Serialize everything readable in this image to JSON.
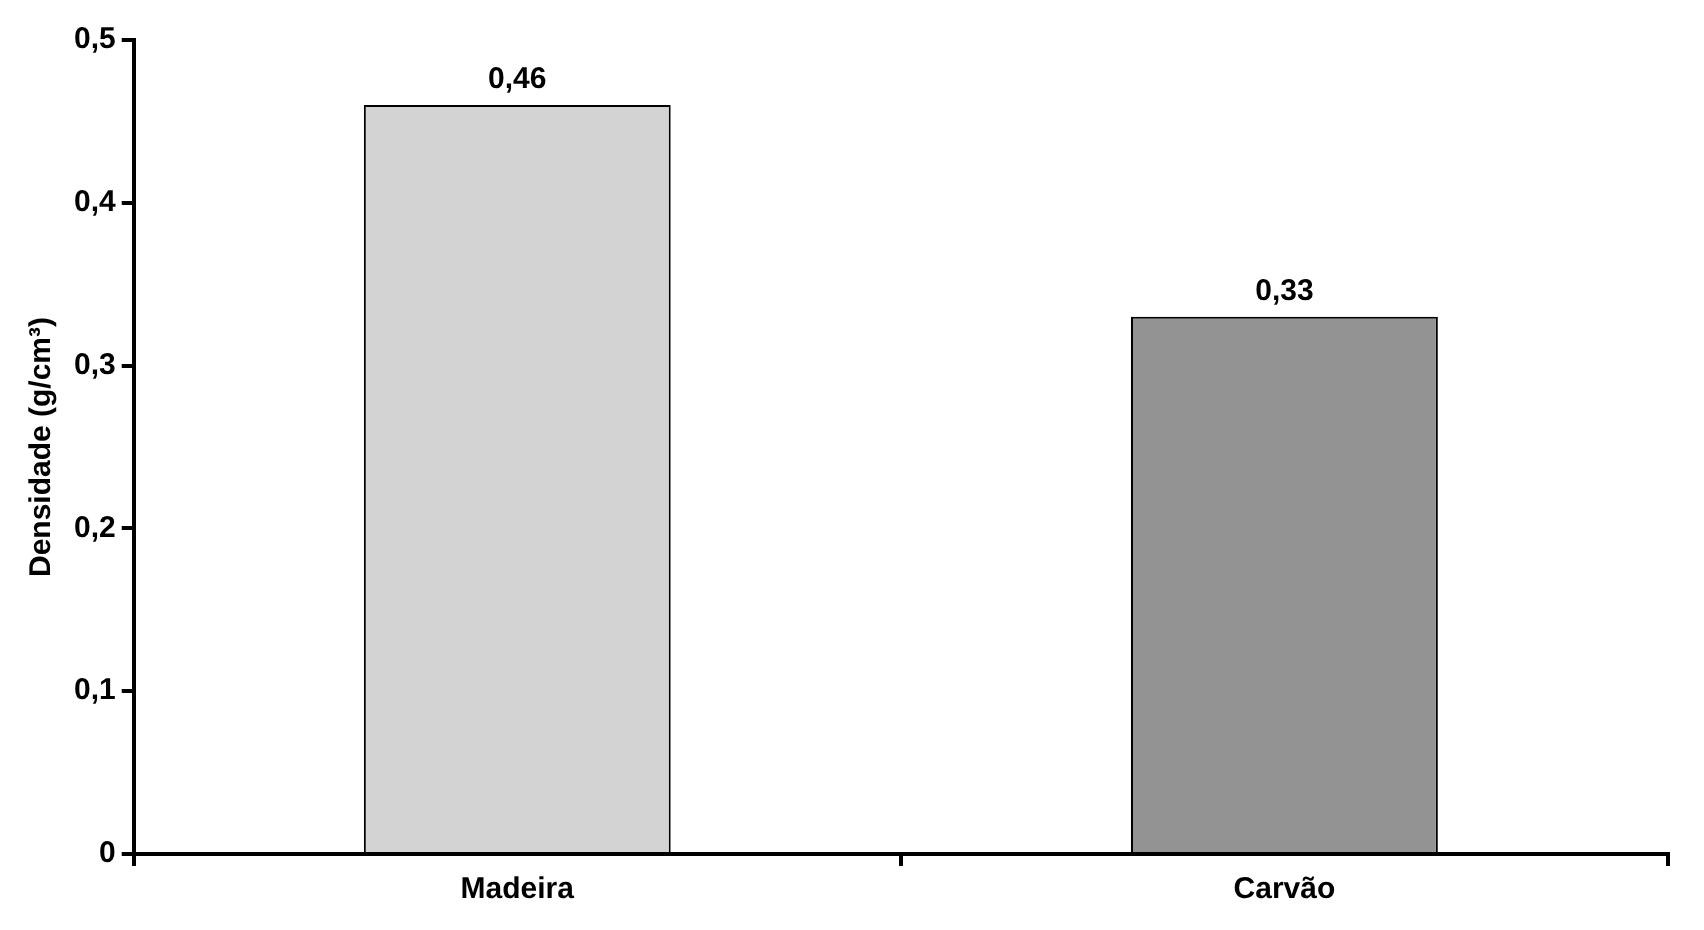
{
  "chart_data": {
    "type": "bar",
    "ylabel": "Densidade (g/cm³)",
    "categories": [
      "Madeira",
      "Carvão"
    ],
    "values": [
      0.46,
      0.33
    ],
    "colors": [
      "#d3d3d3",
      "#939393"
    ],
    "value_labels": [
      "0,46",
      "0,33"
    ],
    "ylim": [
      0,
      0.5
    ],
    "yticks": [
      {
        "value": 0,
        "label": "0"
      },
      {
        "value": 0.1,
        "label": "0,1"
      },
      {
        "value": 0.2,
        "label": "0,2"
      },
      {
        "value": 0.3,
        "label": "0,3"
      },
      {
        "value": 0.4,
        "label": "0,4"
      },
      {
        "value": 0.5,
        "label": "0,5"
      }
    ],
    "grid": false,
    "legend": false
  }
}
